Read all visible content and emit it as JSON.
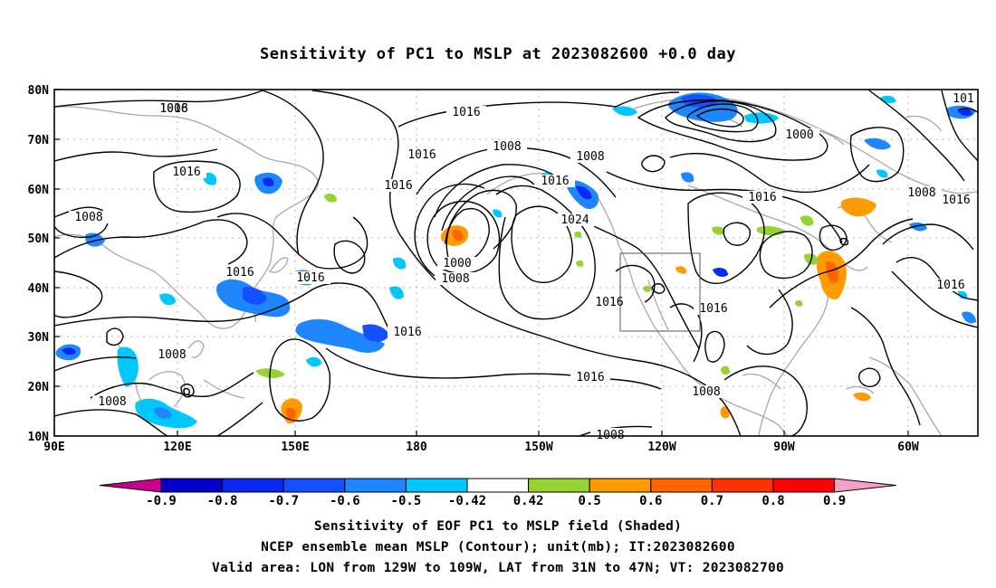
{
  "title": "Sensitivity of PC1 to MSLP at 2023082600 +0.0 day",
  "map": {
    "lat_labels": [
      "80N",
      "70N",
      "60N",
      "50N",
      "40N",
      "30N",
      "20N",
      "10N"
    ],
    "lon_labels": [
      "90E",
      "120E",
      "150E",
      "180",
      "150W",
      "120W",
      "90W",
      "60W"
    ],
    "contour_labels": [
      {
        "text": "1008",
        "name": "contour-label-1008-a"
      },
      {
        "text": "1016",
        "name": "contour-label-1016-a"
      },
      {
        "text": "1008",
        "name": "contour-label-1008-b"
      },
      {
        "text": "1016",
        "name": "contour-label-1016-b"
      },
      {
        "text": "1016",
        "name": "contour-label-1016-c"
      },
      {
        "text": "1016",
        "name": "contour-label-1016-d"
      },
      {
        "text": "1008",
        "name": "contour-label-1008-c"
      },
      {
        "text": "1016",
        "name": "contour-label-1016-e"
      },
      {
        "text": "1008",
        "name": "contour-label-1008-d"
      },
      {
        "text": "1016",
        "name": "contour-label-1016-f"
      },
      {
        "text": "1024",
        "name": "contour-label-1024"
      },
      {
        "text": "1000",
        "name": "contour-label-1000-a"
      },
      {
        "text": "1008",
        "name": "contour-label-1008-e"
      },
      {
        "text": "1016",
        "name": "contour-label-1016-g"
      },
      {
        "text": "1008",
        "name": "contour-label-1008-f"
      },
      {
        "text": "1016",
        "name": "contour-label-1016-h"
      },
      {
        "text": "1016",
        "name": "contour-label-1016-i"
      },
      {
        "text": "1016",
        "name": "contour-label-1016-j"
      },
      {
        "text": "1016",
        "name": "contour-label-1016-k"
      },
      {
        "text": "1008",
        "name": "contour-label-1008-g"
      },
      {
        "text": "1008",
        "name": "contour-label-1008-h"
      },
      {
        "text": "1000",
        "name": "contour-label-1000-b"
      },
      {
        "text": "1008",
        "name": "contour-label-1008-i"
      },
      {
        "text": "1016",
        "name": "contour-label-1016-l"
      },
      {
        "text": "1016",
        "name": "contour-label-1016-m"
      },
      {
        "text": "101",
        "name": "contour-label-101-partial"
      },
      {
        "text": "1016",
        "name": "contour-label-1016-n"
      },
      {
        "text": "1008",
        "name": "contour-label-1008-j"
      },
      {
        "text": "1016",
        "name": "contour-label-1016-o"
      }
    ]
  },
  "colorbar": {
    "colors": [
      "#c8008c",
      "#0000c8",
      "#0a28f0",
      "#1450ff",
      "#1e87ff",
      "#00c8ff",
      "#ffffff",
      "#96d232",
      "#ff9b00",
      "#ff6400",
      "#ff3200",
      "#ff0000",
      "#f5a0c8"
    ],
    "labels": [
      "-0.9",
      "-0.8",
      "-0.7",
      "-0.6",
      "-0.5",
      "-0.42",
      "0.42",
      "0.5",
      "0.6",
      "0.7",
      "0.8",
      "0.9"
    ]
  },
  "captions": {
    "line1": "Sensitivity of EOF PC1 to MSLP field (Shaded)",
    "line2": "NCEP ensemble mean MSLP (Contour); unit(mb); IT:2023082600",
    "line3": "Valid area: LON from 129W to 109W, LAT from 31N to 47N; VT: 2023082700"
  }
}
